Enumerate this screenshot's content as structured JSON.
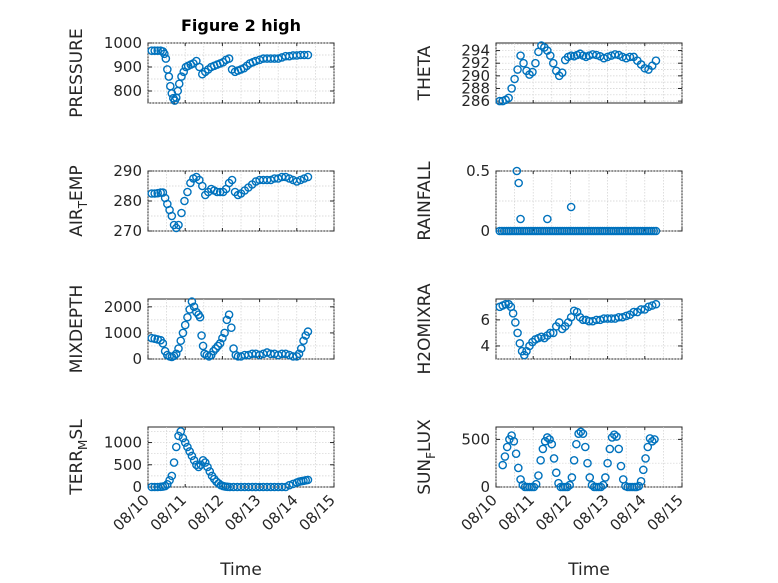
{
  "figure": {
    "title": "Figure 2 high",
    "marker_color": "#0072BD",
    "x_label": "Time",
    "x_ticks": [
      "08/10",
      "08/11",
      "08/12",
      "08/13",
      "08/14",
      "08/15"
    ]
  },
  "chart_data": [
    {
      "type": "scatter",
      "ylabel": "PRESSURE",
      "title": "Figure 2 high",
      "xlim": [
        0,
        5
      ],
      "ylim": [
        750,
        1000
      ],
      "yticks": [
        800,
        900,
        1000
      ],
      "x": [
        0.1,
        0.18,
        0.26,
        0.34,
        0.4,
        0.44,
        0.48,
        0.52,
        0.56,
        0.6,
        0.64,
        0.68,
        0.72,
        0.76,
        0.8,
        0.84,
        0.9,
        0.96,
        1.02,
        1.08,
        1.15,
        1.22,
        1.3,
        1.38,
        1.46,
        1.54,
        1.62,
        1.7,
        1.78,
        1.86,
        1.94,
        2.02,
        2.1,
        2.18,
        2.26,
        2.34,
        2.42,
        2.5,
        2.58,
        2.66,
        2.74,
        2.82,
        2.9,
        3.0,
        3.1,
        3.2,
        3.3,
        3.4,
        3.5,
        3.6,
        3.7,
        3.8,
        3.9,
        4.0,
        4.1,
        4.2,
        4.3
      ],
      "y": [
        968,
        968,
        968,
        968,
        965,
        955,
        935,
        890,
        860,
        820,
        790,
        770,
        760,
        772,
        800,
        830,
        860,
        880,
        900,
        905,
        910,
        915,
        925,
        900,
        870,
        880,
        890,
        900,
        905,
        910,
        915,
        920,
        930,
        935,
        890,
        880,
        885,
        890,
        895,
        905,
        915,
        920,
        925,
        930,
        935,
        935,
        935,
        935,
        935,
        940,
        945,
        945,
        948,
        948,
        950,
        950,
        950
      ]
    },
    {
      "type": "scatter",
      "ylabel": "THETA",
      "xlim": [
        0,
        5
      ],
      "ylim": [
        285.7,
        295.2
      ],
      "yticks": [
        286,
        288,
        290,
        292,
        294
      ],
      "x": [
        0.1,
        0.18,
        0.26,
        0.34,
        0.42,
        0.5,
        0.58,
        0.66,
        0.74,
        0.82,
        0.9,
        0.98,
        1.06,
        1.14,
        1.22,
        1.3,
        1.38,
        1.46,
        1.54,
        1.62,
        1.7,
        1.78,
        1.86,
        1.94,
        2.02,
        2.1,
        2.18,
        2.26,
        2.34,
        2.42,
        2.5,
        2.6,
        2.7,
        2.8,
        2.9,
        3.0,
        3.1,
        3.2,
        3.3,
        3.4,
        3.5,
        3.6,
        3.7,
        3.8,
        3.9,
        4.0,
        4.1,
        4.2,
        4.3
      ],
      "y": [
        286,
        286,
        286.2,
        286.5,
        288,
        289.5,
        291,
        293.2,
        292,
        290.8,
        290.2,
        290.6,
        292,
        293.8,
        294.8,
        294.5,
        294,
        293.2,
        292,
        290.8,
        290,
        290.5,
        292.5,
        293,
        293.2,
        293.1,
        293.3,
        293.5,
        293.2,
        293.0,
        293.2,
        293.4,
        293.3,
        293.1,
        292.8,
        293.0,
        293.2,
        293.4,
        293.3,
        293.0,
        292.8,
        293.0,
        293.0,
        292.4,
        291.8,
        291.2,
        291.0,
        291.6,
        292.4
      ]
    },
    {
      "type": "scatter",
      "ylabel": "AIR_TEMP",
      "xlim": [
        0,
        5
      ],
      "ylim": [
        270,
        290
      ],
      "yticks": [
        270,
        280,
        290
      ],
      "x": [
        0.1,
        0.18,
        0.26,
        0.34,
        0.4,
        0.46,
        0.52,
        0.58,
        0.64,
        0.7,
        0.76,
        0.82,
        0.9,
        0.98,
        1.06,
        1.14,
        1.22,
        1.3,
        1.38,
        1.46,
        1.54,
        1.62,
        1.7,
        1.78,
        1.86,
        1.94,
        2.02,
        2.1,
        2.18,
        2.26,
        2.34,
        2.42,
        2.5,
        2.6,
        2.7,
        2.8,
        2.9,
        3.0,
        3.1,
        3.2,
        3.3,
        3.4,
        3.5,
        3.6,
        3.7,
        3.8,
        3.9,
        4.0,
        4.1,
        4.2,
        4.3
      ],
      "y": [
        282.5,
        282.5,
        282.6,
        282.8,
        282.8,
        281,
        279,
        277,
        275,
        272,
        271,
        272,
        276,
        280,
        283,
        286,
        287.5,
        288,
        287,
        285,
        282,
        283,
        284,
        283.5,
        283,
        283,
        283,
        284,
        286,
        287,
        283,
        282,
        282.5,
        283.5,
        284.5,
        285.5,
        286.5,
        287,
        287,
        287,
        287,
        287.5,
        287.5,
        288,
        288,
        287.5,
        287,
        286.5,
        287,
        287.5,
        288
      ]
    },
    {
      "type": "scatter",
      "ylabel": "RAINFALL",
      "xlim": [
        0,
        5
      ],
      "ylim": [
        0,
        0.5
      ],
      "yticks": [
        0,
        0.5
      ],
      "x": [
        0.1,
        0.16,
        0.22,
        0.28,
        0.34,
        0.4,
        0.46,
        0.52,
        0.58,
        0.64,
        0.7,
        0.76,
        0.82,
        0.88,
        0.94,
        1.0,
        1.06,
        1.12,
        1.18,
        1.24,
        1.3,
        1.36,
        1.42,
        1.48,
        1.54,
        1.6,
        1.66,
        1.72,
        1.78,
        1.84,
        1.9,
        1.96,
        2.02,
        2.08,
        2.14,
        2.2,
        2.26,
        2.32,
        2.38,
        2.44,
        2.5,
        2.56,
        2.62,
        2.68,
        2.74,
        2.8,
        2.86,
        2.92,
        2.98,
        3.04,
        3.1,
        3.16,
        3.22,
        3.28,
        3.34,
        3.4,
        3.46,
        3.52,
        3.58,
        3.64,
        3.7,
        3.76,
        3.82,
        3.88,
        3.94,
        4.0,
        4.06,
        4.12,
        4.18,
        4.24,
        4.3,
        0.56,
        0.61,
        0.66,
        1.38,
        2.02
      ],
      "y": [
        0,
        0,
        0,
        0,
        0,
        0,
        0,
        0,
        0,
        0,
        0,
        0,
        0,
        0,
        0,
        0,
        0,
        0,
        0,
        0,
        0,
        0,
        0,
        0,
        0,
        0,
        0,
        0,
        0,
        0,
        0,
        0,
        0,
        0,
        0,
        0,
        0,
        0,
        0,
        0,
        0,
        0,
        0,
        0,
        0,
        0,
        0,
        0,
        0,
        0,
        0,
        0,
        0,
        0,
        0,
        0,
        0,
        0,
        0,
        0,
        0,
        0,
        0,
        0,
        0,
        0,
        0,
        0,
        0,
        0,
        0,
        0.5,
        0.4,
        0.1,
        0.1,
        0.2
      ]
    },
    {
      "type": "scatter",
      "ylabel": "MIXDEPTH",
      "xlim": [
        0,
        5
      ],
      "ylim": [
        0,
        2300
      ],
      "yticks": [
        0,
        1000,
        2000
      ],
      "x": [
        0.1,
        0.18,
        0.26,
        0.34,
        0.4,
        0.46,
        0.52,
        0.58,
        0.64,
        0.7,
        0.76,
        0.82,
        0.88,
        0.94,
        1.0,
        1.06,
        1.12,
        1.18,
        1.24,
        1.3,
        1.36,
        1.4,
        1.44,
        1.48,
        1.52,
        1.58,
        1.64,
        1.7,
        1.76,
        1.82,
        1.88,
        1.94,
        2.0,
        2.06,
        2.12,
        2.18,
        2.24,
        2.3,
        2.36,
        2.42,
        2.5,
        2.6,
        2.7,
        2.8,
        2.9,
        3.0,
        3.1,
        3.2,
        3.3,
        3.4,
        3.5,
        3.6,
        3.7,
        3.8,
        3.9,
        4.0,
        4.06,
        4.12,
        4.18,
        4.24,
        4.3
      ],
      "y": [
        800,
        780,
        750,
        720,
        600,
        300,
        150,
        100,
        80,
        120,
        200,
        400,
        700,
        1000,
        1300,
        1600,
        1900,
        2200,
        2000,
        1800,
        1700,
        1600,
        900,
        500,
        200,
        150,
        100,
        150,
        300,
        400,
        500,
        600,
        800,
        1000,
        1500,
        1700,
        1200,
        400,
        150,
        100,
        100,
        150,
        150,
        200,
        200,
        150,
        200,
        250,
        200,
        200,
        150,
        200,
        200,
        150,
        100,
        100,
        200,
        400,
        700,
        900,
        1050
      ]
    },
    {
      "type": "scatter",
      "ylabel": "H2OMIXRA",
      "xlim": [
        0,
        5
      ],
      "ylim": [
        3,
        7.6
      ],
      "yticks": [
        4,
        6
      ],
      "x": [
        0.1,
        0.18,
        0.26,
        0.34,
        0.4,
        0.46,
        0.52,
        0.58,
        0.64,
        0.7,
        0.76,
        0.82,
        0.9,
        0.98,
        1.06,
        1.14,
        1.22,
        1.3,
        1.38,
        1.46,
        1.54,
        1.62,
        1.7,
        1.78,
        1.86,
        1.94,
        2.02,
        2.1,
        2.18,
        2.26,
        2.34,
        2.42,
        2.5,
        2.6,
        2.7,
        2.8,
        2.9,
        3.0,
        3.1,
        3.2,
        3.3,
        3.4,
        3.5,
        3.6,
        3.7,
        3.8,
        3.9,
        4.0,
        4.1,
        4.2,
        4.3
      ],
      "y": [
        7,
        7.1,
        7.2,
        7.2,
        7.0,
        6.5,
        5.8,
        5.0,
        4.2,
        3.6,
        3.3,
        3.6,
        4.0,
        4.3,
        4.5,
        4.6,
        4.7,
        4.6,
        4.8,
        5.0,
        5.0,
        5.5,
        5.8,
        5.3,
        5.5,
        5.8,
        6.2,
        6.7,
        6.6,
        6.2,
        6.0,
        6.0,
        5.9,
        5.9,
        6.0,
        6.0,
        6.1,
        6.1,
        6.1,
        6.1,
        6.2,
        6.2,
        6.3,
        6.4,
        6.6,
        6.6,
        6.8,
        6.8,
        7.0,
        7.1,
        7.2
      ]
    },
    {
      "type": "scatter",
      "ylabel": "TERR_MSL",
      "xlim": [
        0,
        5
      ],
      "ylim": [
        0,
        1350
      ],
      "yticks": [
        0,
        500,
        1000
      ],
      "x": [
        0.1,
        0.18,
        0.26,
        0.34,
        0.4,
        0.46,
        0.52,
        0.58,
        0.64,
        0.7,
        0.76,
        0.82,
        0.88,
        0.94,
        1.0,
        1.06,
        1.12,
        1.18,
        1.24,
        1.3,
        1.36,
        1.42,
        1.48,
        1.54,
        1.6,
        1.66,
        1.72,
        1.78,
        1.84,
        1.9,
        1.96,
        2.02,
        2.08,
        2.14,
        2.2,
        2.3,
        2.4,
        2.5,
        2.6,
        2.7,
        2.8,
        2.9,
        3.0,
        3.1,
        3.2,
        3.3,
        3.4,
        3.5,
        3.6,
        3.7,
        3.8,
        3.9,
        4.0,
        4.06,
        4.12,
        4.18,
        4.24,
        4.3
      ],
      "y": [
        0,
        0,
        0,
        5,
        10,
        20,
        60,
        150,
        250,
        550,
        900,
        1150,
        1250,
        1100,
        1000,
        900,
        800,
        700,
        600,
        500,
        450,
        500,
        600,
        550,
        450,
        350,
        250,
        180,
        120,
        80,
        40,
        20,
        10,
        5,
        0,
        0,
        0,
        0,
        0,
        0,
        0,
        0,
        0,
        0,
        0,
        0,
        0,
        0,
        0,
        0,
        40,
        70,
        100,
        120,
        130,
        140,
        150,
        160
      ]
    },
    {
      "type": "scatter",
      "ylabel": "SUN_FLUX",
      "xlim": [
        0,
        5
      ],
      "ylim": [
        0,
        630
      ],
      "yticks": [
        0,
        500
      ],
      "x": [
        0.18,
        0.24,
        0.3,
        0.36,
        0.42,
        0.48,
        0.54,
        0.6,
        0.66,
        0.72,
        0.78,
        0.84,
        0.9,
        0.96,
        1.02,
        1.08,
        1.14,
        1.2,
        1.26,
        1.32,
        1.38,
        1.44,
        1.5,
        1.56,
        1.62,
        1.68,
        1.74,
        1.8,
        1.86,
        1.92,
        1.98,
        2.04,
        2.1,
        2.16,
        2.22,
        2.28,
        2.34,
        2.4,
        2.46,
        2.52,
        2.58,
        2.64,
        2.7,
        2.76,
        2.82,
        2.88,
        2.94,
        3.0,
        3.06,
        3.12,
        3.18,
        3.24,
        3.3,
        3.36,
        3.42,
        3.48,
        3.54,
        3.6,
        3.66,
        3.72,
        3.78,
        3.84,
        3.9,
        3.96,
        4.02,
        4.08,
        4.14,
        4.2,
        4.26
      ],
      "y": [
        230,
        320,
        420,
        500,
        540,
        480,
        350,
        200,
        80,
        20,
        0,
        0,
        0,
        0,
        0,
        30,
        120,
        280,
        400,
        480,
        520,
        500,
        450,
        300,
        150,
        40,
        0,
        0,
        0,
        0,
        20,
        100,
        280,
        450,
        560,
        580,
        560,
        420,
        250,
        100,
        20,
        0,
        0,
        0,
        0,
        20,
        100,
        250,
        400,
        520,
        550,
        530,
        400,
        220,
        80,
        10,
        0,
        0,
        0,
        0,
        0,
        10,
        60,
        180,
        300,
        420,
        510,
        480,
        500
      ]
    }
  ]
}
